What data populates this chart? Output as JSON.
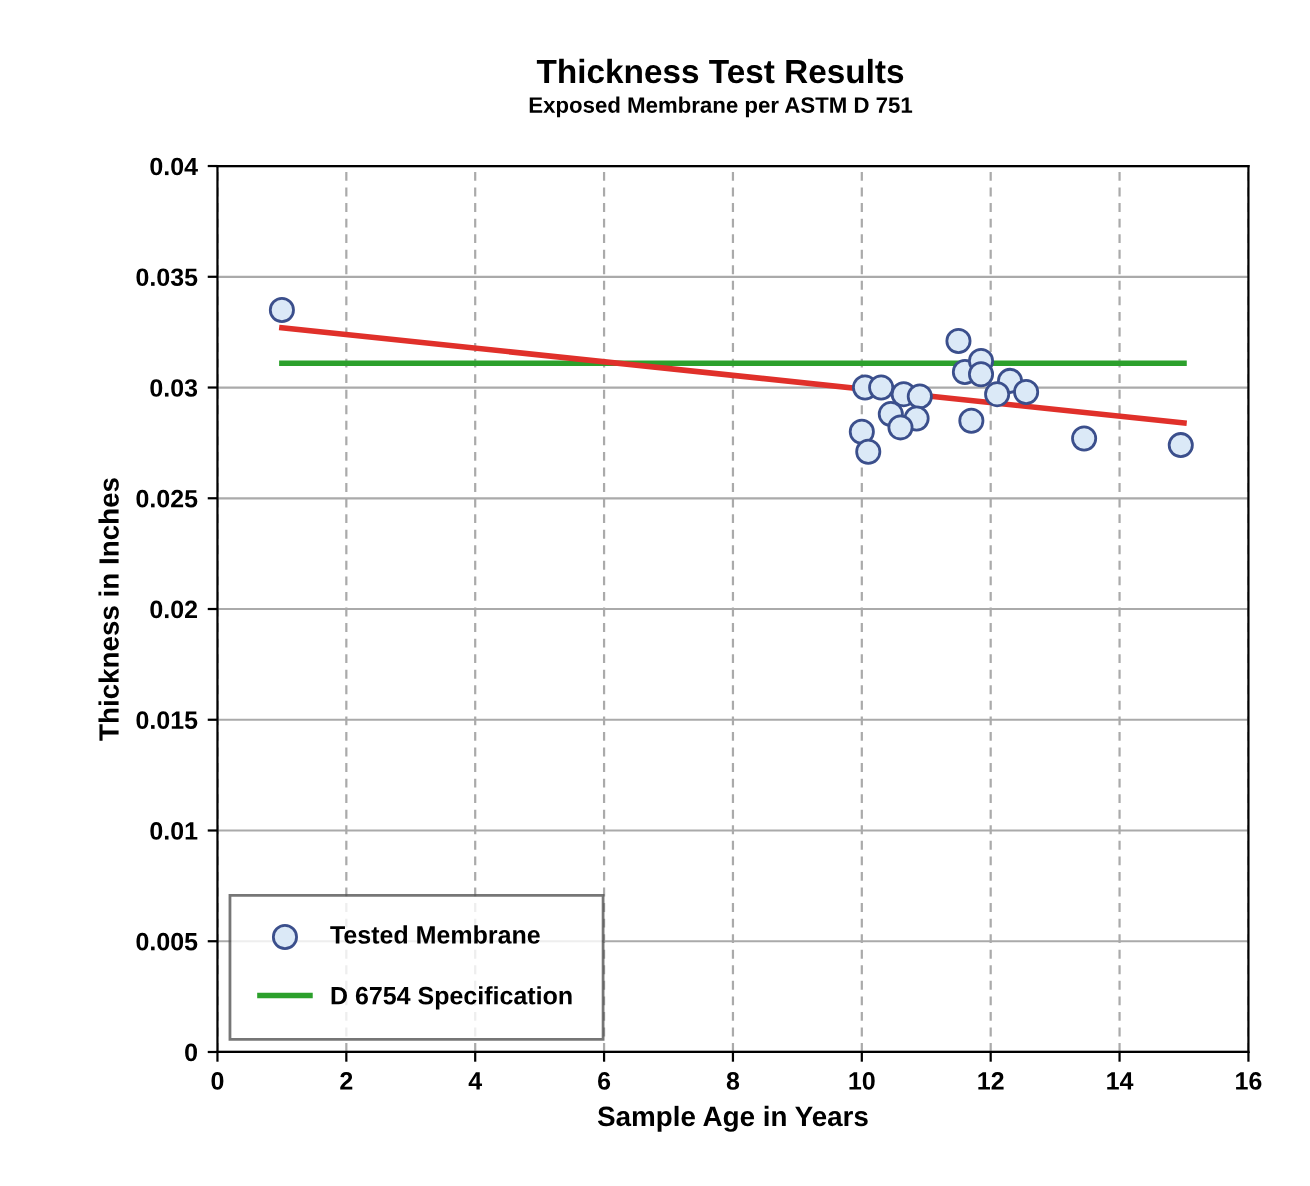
{
  "chart_data": {
    "type": "scatter",
    "title": "Thickness Test Results",
    "subtitle": "Exposed Membrane per ASTM D 751",
    "xlabel": "Sample Age in Years",
    "ylabel": "Thickness in Inches",
    "xlim": [
      0,
      16
    ],
    "xticks": [
      0,
      2,
      4,
      6,
      8,
      10,
      12,
      14,
      16
    ],
    "ylim": [
      0,
      0.04
    ],
    "yticks": [
      0,
      0.005,
      0.01,
      0.015,
      0.02,
      0.025,
      0.03,
      0.035,
      0.04
    ],
    "grid": true,
    "legend": "bottom left",
    "series": [
      {
        "name": "Tested Membrane",
        "marker": "circle",
        "color": "#dbe9f7",
        "x": [
          1,
          11.5,
          11.6,
          11.85,
          11.85,
          12.25,
          12.3,
          12.55,
          12.1,
          11.7,
          10.05,
          10.3,
          10.65,
          10.9,
          10.45,
          10.85,
          10.6,
          10.0,
          10.1,
          13.45,
          14.95
        ],
        "values": [
          0.0335,
          0.0321,
          0.0307,
          0.0312,
          0.0306,
          null,
          0.0303,
          0.0298,
          0.0297,
          0.0285,
          0.03,
          0.03,
          0.0297,
          0.0296,
          0.0288,
          0.0286,
          0.0282,
          0.028,
          0.0271,
          0.0277,
          0.0274
        ]
      },
      {
        "name": "D 6754 Specification",
        "type": "line",
        "color": "#2ca02c",
        "x": [
          1,
          15
        ],
        "values": [
          0.0311,
          0.0311
        ]
      },
      {
        "type": "line",
        "color": "#e0302a",
        "x": [
          1,
          15
        ],
        "values": [
          0.0327,
          0.0284
        ]
      }
    ]
  }
}
